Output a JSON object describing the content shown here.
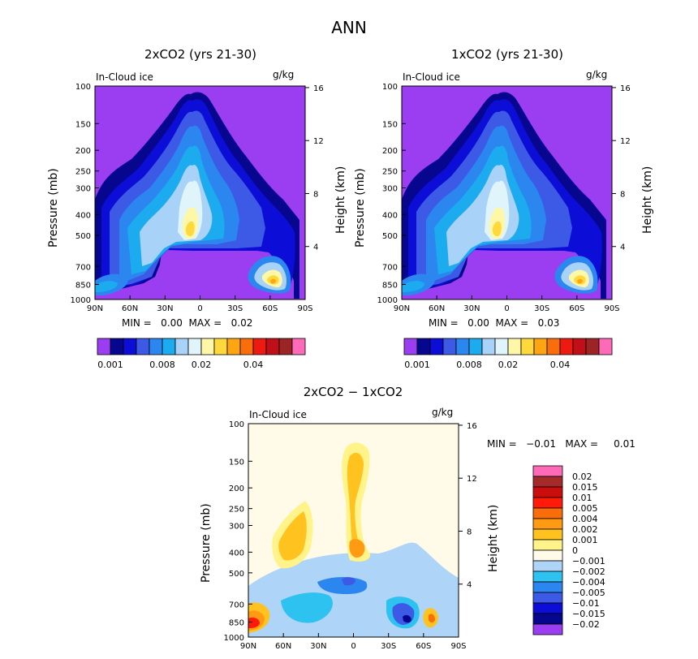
{
  "main_title": "ANN",
  "chart_data": [
    {
      "type": "heatmap",
      "title": "2xCO2 (yrs 21-30)",
      "subtitle_left": "In-Cloud ice",
      "subtitle_right": "g/kg",
      "ylabel": "Pressure (mb)",
      "ylabel_right": "Height (km)",
      "x_ticks": [
        "90N",
        "60N",
        "30N",
        "0",
        "30S",
        "60S",
        "90S"
      ],
      "y_ticks": [
        "100",
        "150",
        "200",
        "250",
        "300",
        "400",
        "500",
        "700",
        "850",
        "1000"
      ],
      "y_right_ticks": [
        "16",
        "12",
        "8",
        "4"
      ],
      "min_text": "MIN =   0.00  MAX =   0.02",
      "colorbar_ticks": [
        "0.001",
        "0.008",
        "0.02",
        "0.04"
      ],
      "colorbar_colors": [
        "#9b3df0",
        "#06068f",
        "#0d0dd8",
        "#3c5ae6",
        "#2b86f0",
        "#1cabef",
        "#a8d2f7",
        "#dff4fb",
        "#fff7a8",
        "#ffd93b",
        "#ffa512",
        "#f96d0a",
        "#ee1a12",
        "#c00f18",
        "#9d2424",
        "#ff6ab8"
      ]
    },
    {
      "type": "heatmap",
      "title": "1xCO2 (yrs 21-30)",
      "subtitle_left": "In-Cloud ice",
      "subtitle_right": "g/kg",
      "ylabel": "Pressure (mb)",
      "ylabel_right": "Height (km)",
      "x_ticks": [
        "90N",
        "60N",
        "30N",
        "0",
        "30S",
        "60S",
        "90S"
      ],
      "y_ticks": [
        "100",
        "150",
        "200",
        "250",
        "300",
        "400",
        "500",
        "700",
        "850",
        "1000"
      ],
      "y_right_ticks": [
        "16",
        "12",
        "8",
        "4"
      ],
      "min_text": "MIN =   0.00  MAX =   0.03",
      "colorbar_ticks": [
        "0.001",
        "0.008",
        "0.02",
        "0.04"
      ]
    },
    {
      "type": "heatmap",
      "title": "2xCO2 − 1xCO2",
      "subtitle_left": "In-Cloud ice",
      "subtitle_right": "g/kg",
      "ylabel": "Pressure (mb)",
      "ylabel_right": "Height (km)",
      "x_ticks": [
        "90N",
        "60N",
        "30N",
        "0",
        "30S",
        "60S",
        "90S"
      ],
      "y_ticks": [
        "100",
        "150",
        "200",
        "250",
        "300",
        "400",
        "500",
        "700",
        "850",
        "1000"
      ],
      "y_right_ticks": [
        "16",
        "12",
        "8",
        "4"
      ],
      "min_text": "MIN =   −0.01   MAX =     0.01",
      "colorbar_labels": [
        "0.02",
        "0.015",
        "0.01",
        "0.005",
        "0.004",
        "0.002",
        "0.001",
        "0",
        "−0.001",
        "−0.002",
        "−0.004",
        "−0.005",
        "−0.01",
        "−0.015",
        "−0.02"
      ],
      "colorbar_colors": [
        "#ff6ab8",
        "#a52a2a",
        "#cc0d0d",
        "#ff1a0a",
        "#f96d0a",
        "#ff9a12",
        "#ffc21f",
        "#fff38a",
        "#fffbe8",
        "#aed4f7",
        "#2ec2f0",
        "#2b86f0",
        "#3c5ae6",
        "#0d0dd8",
        "#06068f",
        "#9b3df0"
      ]
    }
  ]
}
